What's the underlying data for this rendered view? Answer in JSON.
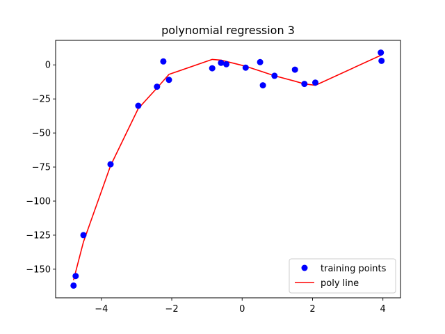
{
  "chart_data": {
    "type": "scatter",
    "title": "polynomial regression 3",
    "xlabel": "",
    "ylabel": "",
    "xlim": [
      -5.3,
      4.5
    ],
    "ylim": [
      -171,
      18
    ],
    "xticks": [
      -4,
      -2,
      0,
      2,
      4
    ],
    "xtick_labels": [
      "−4",
      "−2",
      "0",
      "2",
      "4"
    ],
    "yticks": [
      0,
      -25,
      -50,
      -75,
      -100,
      -125,
      -150
    ],
    "ytick_labels": [
      "0",
      "−25",
      "−50",
      "−75",
      "−100",
      "−125",
      "−150"
    ],
    "grid": false,
    "legend_position": "lower-right",
    "series": [
      {
        "name": "training points",
        "kind": "scatter",
        "color": "#0000ff",
        "points": [
          [
            -4.79,
            -162.0
          ],
          [
            -4.73,
            -155.0
          ],
          [
            -4.51,
            -125.0
          ],
          [
            -3.74,
            -73.0
          ],
          [
            -2.95,
            -30.0
          ],
          [
            -2.42,
            -16.0
          ],
          [
            -2.24,
            2.5
          ],
          [
            -2.08,
            -11.0
          ],
          [
            -0.85,
            -2.5
          ],
          [
            -0.6,
            1.5
          ],
          [
            -0.45,
            0.5
          ],
          [
            0.1,
            -2.0
          ],
          [
            0.51,
            2.0
          ],
          [
            0.59,
            -15.0
          ],
          [
            0.92,
            -8.0
          ],
          [
            1.5,
            -3.5
          ],
          [
            1.77,
            -14.0
          ],
          [
            2.08,
            -13.0
          ],
          [
            3.94,
            9.0
          ],
          [
            3.96,
            3.0
          ]
        ]
      },
      {
        "name": "poly line",
        "kind": "line",
        "color": "#ff0000",
        "points": [
          [
            -4.79,
            -158.0
          ],
          [
            -4.73,
            -152.0
          ],
          [
            -4.51,
            -130.0
          ],
          [
            -3.74,
            -74.0
          ],
          [
            -2.95,
            -32.0
          ],
          [
            -2.42,
            -17.0
          ],
          [
            -2.08,
            -7.0
          ],
          [
            -0.85,
            4.0
          ],
          [
            -0.6,
            3.5
          ],
          [
            -0.45,
            2.5
          ],
          [
            0.1,
            -1.0
          ],
          [
            0.51,
            -4.5
          ],
          [
            0.92,
            -8.0
          ],
          [
            1.5,
            -12.0
          ],
          [
            1.77,
            -14.0
          ],
          [
            2.08,
            -15.0
          ],
          [
            3.94,
            7.0
          ]
        ]
      }
    ]
  }
}
